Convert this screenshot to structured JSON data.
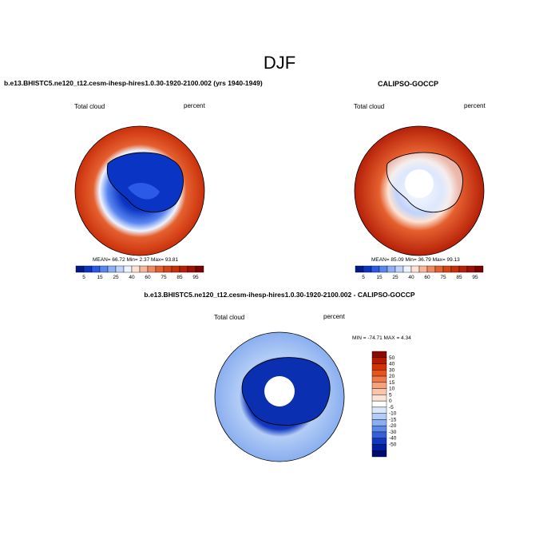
{
  "figure": {
    "season": "DJF",
    "left_title": "b.e13.BHISTC5.ne120_t12.cesm-ihesp-hires1.0.30-1920-2100.002 (yrs 1940-1949)",
    "right_title": "CALIPSO-GOCCP",
    "bottom_title": "b.e13.BHISTC5.ne120_t12.cesm-ihesp-hires1.0.30-1920-2100.002 - CALIPSO-GOCCP"
  },
  "panels": {
    "model": {
      "variable": "Total cloud",
      "units": "percent",
      "stats": "MEAN=  66.72  Min=   2.37  Max=  93.81"
    },
    "obs": {
      "variable": "Total cloud",
      "units": "percent",
      "stats": "MEAN=  85.09  Min=  36.79  Max=  99.13"
    },
    "diff": {
      "variable": "Total cloud",
      "units": "percent",
      "stats": "MIN = -74.71 MAX =   4.34"
    }
  },
  "chart_data": [
    {
      "type": "heatmap",
      "title": "b.e13.BHISTC5.ne120_t12.cesm-ihesp-hires1.0.30-1920-2100.002 (yrs 1940-1949)",
      "variable": "Total cloud",
      "units": "percent",
      "projection": "south polar stereographic",
      "mean": 66.72,
      "min": 2.37,
      "max": 93.81,
      "colorbar": {
        "orientation": "horizontal",
        "tick_labels": [
          "5",
          "15",
          "25",
          "40",
          "60",
          "75",
          "85",
          "95"
        ],
        "colors": [
          "#001a8c",
          "#0a35c4",
          "#2a5ae6",
          "#5a86f0",
          "#8fb0f5",
          "#c0d3fa",
          "#eef4ff",
          "#fde3d4",
          "#f6b79c",
          "#ef8a63",
          "#e5602f",
          "#d84316",
          "#c9300a",
          "#b52008",
          "#9c1006",
          "#7a0000"
        ]
      }
    },
    {
      "type": "heatmap",
      "title": "CALIPSO-GOCCP",
      "variable": "Total cloud",
      "units": "percent",
      "projection": "south polar stereographic",
      "mean": 85.09,
      "min": 36.79,
      "max": 99.13,
      "colorbar": {
        "orientation": "horizontal",
        "tick_labels": [
          "5",
          "15",
          "25",
          "40",
          "60",
          "75",
          "85",
          "95"
        ],
        "colors": [
          "#001a8c",
          "#0a35c4",
          "#2a5ae6",
          "#5a86f0",
          "#8fb0f5",
          "#c0d3fa",
          "#eef4ff",
          "#fde3d4",
          "#f6b79c",
          "#ef8a63",
          "#e5602f",
          "#d84316",
          "#c9300a",
          "#b52008",
          "#9c1006",
          "#7a0000"
        ]
      }
    },
    {
      "type": "heatmap",
      "title": "b.e13.BHISTC5.ne120_t12.cesm-ihesp-hires1.0.30-1920-2100.002 - CALIPSO-GOCCP",
      "variable": "Total cloud",
      "units": "percent",
      "projection": "south polar stereographic",
      "min": -74.71,
      "max": 4.34,
      "colorbar": {
        "orientation": "vertical",
        "tick_labels": [
          "50",
          "40",
          "30",
          "20",
          "15",
          "10",
          "5",
          "0",
          "-5",
          "-10",
          "-15",
          "-20",
          "-30",
          "-40",
          "-50"
        ],
        "colors": [
          "#8c0a00",
          "#b31a00",
          "#d43300",
          "#e5541f",
          "#ee7b4d",
          "#f5a27e",
          "#f9c6ad",
          "#fce3d5",
          "#ffffff",
          "#dbe7fb",
          "#b3cdf6",
          "#8aaeef",
          "#5e88e6",
          "#3560d7",
          "#1238c0",
          "#001f9c",
          "#000a73"
        ]
      }
    }
  ]
}
